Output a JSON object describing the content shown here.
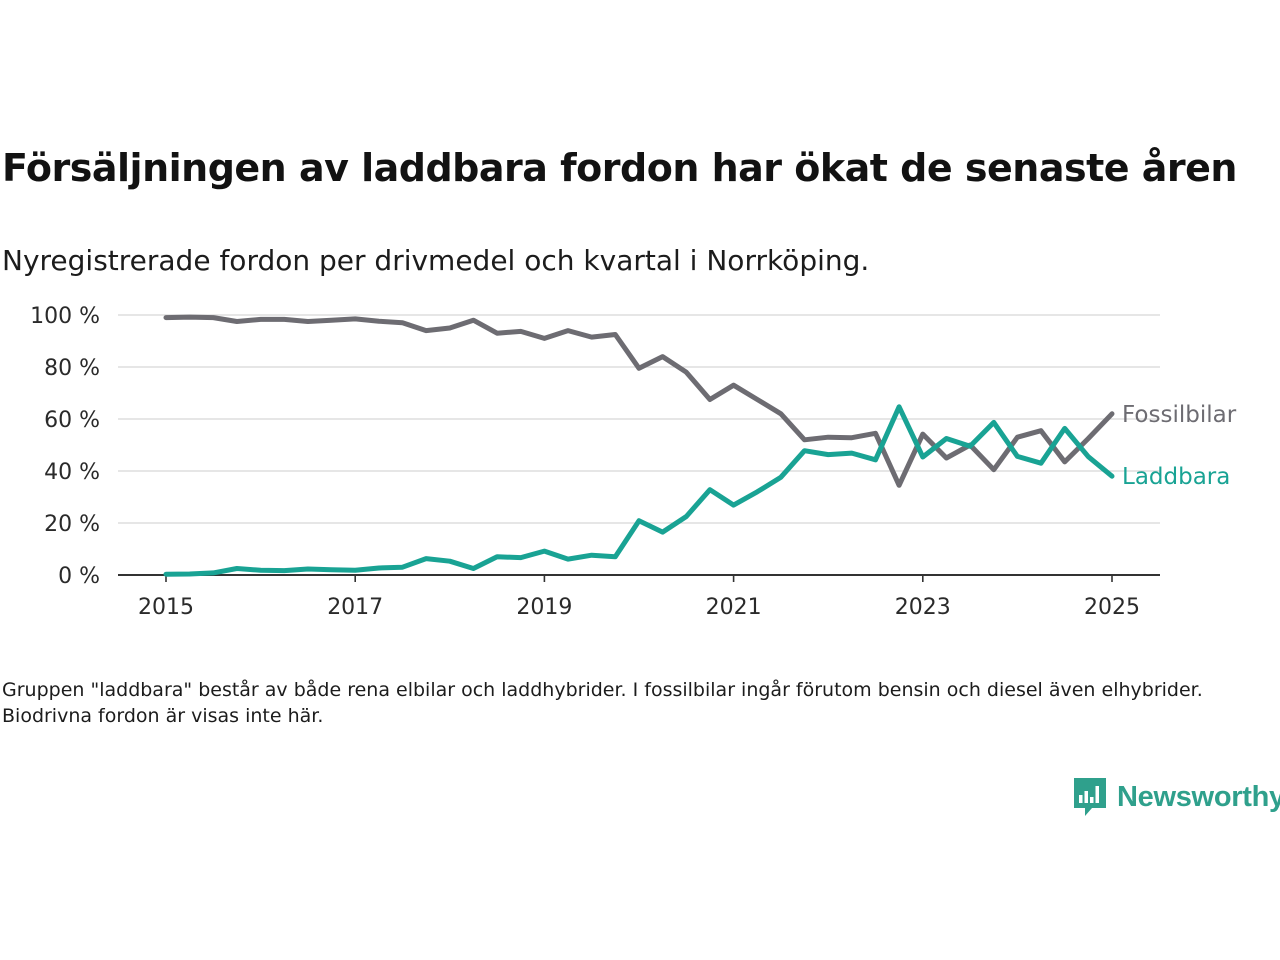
{
  "title": "Försäljningen av laddbara fordon har ökat de senaste åren",
  "subtitle": "Nyregistrerade fordon per drivmedel och kvartal i Norrköping.",
  "note": "Gruppen \"laddbara\" består av både rena elbilar och laddhybrider. I fossilbilar ingår förutom bensin och diesel även elhybrider. Biodrivna fordon är visas inte här.",
  "brand": {
    "name": "Newsworthy",
    "icon": "newsworthy-logo-icon",
    "color": "#2fa08c"
  },
  "chart_data": {
    "type": "line",
    "x": [
      2015.0,
      2015.25,
      2015.5,
      2015.75,
      2016.0,
      2016.25,
      2016.5,
      2016.75,
      2017.0,
      2017.25,
      2017.5,
      2017.75,
      2018.0,
      2018.25,
      2018.5,
      2018.75,
      2019.0,
      2019.25,
      2019.5,
      2019.75,
      2020.0,
      2020.25,
      2020.5,
      2020.75,
      2021.0,
      2021.25,
      2021.5,
      2021.75,
      2022.0,
      2022.25,
      2022.5,
      2022.75,
      2023.0,
      2023.25,
      2023.5,
      2023.75,
      2024.0,
      2024.25,
      2024.5,
      2024.75,
      2025.0
    ],
    "series": [
      {
        "name": "Fossilbilar",
        "color": "#6d6c72",
        "values": [
          99,
          99.2,
          99,
          97.5,
          98.3,
          98.3,
          97.5,
          98,
          98.5,
          97.6,
          97,
          94,
          95,
          98,
          93,
          93.7,
          91,
          94,
          91.5,
          92.5,
          79.5,
          84,
          78,
          67.5,
          73,
          67.5,
          62,
          52,
          53,
          52.8,
          54.5,
          34.5,
          54.2,
          45,
          50,
          40.5,
          53,
          55.5,
          43.5,
          52.5,
          62
        ]
      },
      {
        "name": "Laddbara",
        "color": "#19a394",
        "values": [
          0.3,
          0.4,
          0.8,
          2.5,
          1.8,
          1.7,
          2.3,
          2,
          1.8,
          2.7,
          3,
          6.3,
          5.3,
          2.5,
          7,
          6.7,
          9.2,
          6.1,
          7.6,
          7,
          20.9,
          16.5,
          22.5,
          32.8,
          26.9,
          32,
          37.6,
          47.8,
          46.3,
          46.9,
          44.3,
          64.7,
          45.4,
          52.5,
          49.5,
          58.7,
          45.6,
          43,
          56.4,
          45.5,
          38
        ]
      }
    ],
    "x_ticks": [
      2015,
      2017,
      2019,
      2021,
      2023,
      2025
    ],
    "y_ticks": [
      "0 %",
      "20 %",
      "40 %",
      "60 %",
      "80 %",
      "100 %"
    ],
    "ylim": [
      0,
      100
    ],
    "xlim": [
      2014.5,
      2025.5
    ],
    "grid": true,
    "legend": "end-of-line labels"
  }
}
